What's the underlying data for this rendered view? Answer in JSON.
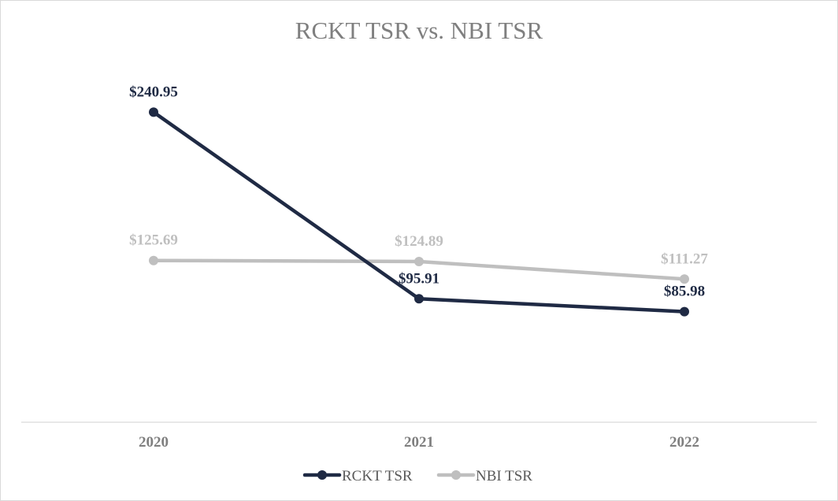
{
  "chart_data": {
    "type": "line",
    "title": "RCKT TSR vs. NBI TSR",
    "categories": [
      "2020",
      "2021",
      "2022"
    ],
    "xlabel": "",
    "ylabel": "",
    "ylim": [
      0,
      300
    ],
    "grid": false,
    "legend_position": "bottom",
    "series": [
      {
        "name": "RCKT TSR",
        "values": [
          240.95,
          95.91,
          85.98
        ],
        "labels": [
          "$240.95",
          "$95.91",
          "$85.98"
        ],
        "label_position": "above",
        "color": "#1f2a44"
      },
      {
        "name": "NBI TSR",
        "values": [
          125.69,
          124.89,
          111.27
        ],
        "labels": [
          "$125.69",
          "$124.89",
          "$111.27"
        ],
        "label_position": "above",
        "color": "#bfbfbf"
      }
    ]
  }
}
